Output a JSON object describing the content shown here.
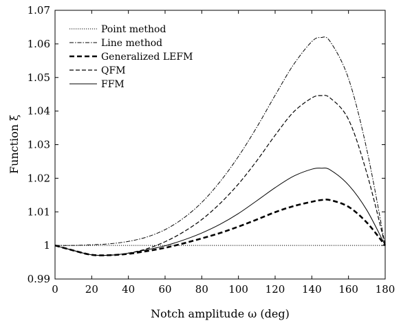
{
  "chart_data": {
    "type": "line",
    "title": "",
    "xlabel": "Notch amplitude ω (deg)",
    "ylabel": "Function ξ",
    "xlim": [
      0,
      180
    ],
    "ylim": [
      0.99,
      1.07
    ],
    "xticks": [
      0,
      20,
      40,
      60,
      80,
      100,
      120,
      140,
      160,
      180
    ],
    "yticks": [
      0.99,
      1,
      1.01,
      1.02,
      1.03,
      1.04,
      1.05,
      1.06,
      1.07
    ],
    "ytick_labels": [
      "0.99",
      "1",
      "1.01",
      "1.02",
      "1.03",
      "1.04",
      "1.05",
      "1.06",
      "1.07"
    ],
    "grid": false,
    "legend_position": "top-left",
    "x": [
      0,
      10,
      20,
      30,
      40,
      50,
      60,
      70,
      80,
      90,
      100,
      110,
      120,
      130,
      140,
      145,
      150,
      160,
      170,
      180
    ],
    "series": [
      {
        "name": "Point method",
        "style": "dotted",
        "values": [
          1,
          1,
          1,
          1,
          1,
          1,
          1,
          1,
          1,
          1,
          1,
          1,
          1,
          1,
          1,
          1,
          1,
          1,
          1,
          1
        ]
      },
      {
        "name": "Line method",
        "style": "dashdot",
        "values": [
          1.0,
          1.0,
          1.0002,
          1.0005,
          1.0012,
          1.0025,
          1.0047,
          1.0081,
          1.0128,
          1.019,
          1.0265,
          1.0352,
          1.0447,
          1.0538,
          1.0607,
          1.0619,
          1.0607,
          1.0497,
          1.0285,
          1.0
        ]
      },
      {
        "name": "Generalized LEFM",
        "style": "bold-dashed",
        "values": [
          1.0,
          0.9985,
          0.9972,
          0.9971,
          0.9975,
          0.9983,
          0.9993,
          1.0006,
          1.0021,
          1.0037,
          1.0056,
          1.0077,
          1.0099,
          1.0117,
          1.013,
          1.0135,
          1.0135,
          1.0115,
          1.0068,
          1.0
        ]
      },
      {
        "name": "QFM",
        "style": "dashed",
        "values": [
          1.0,
          0.9985,
          0.9972,
          0.9971,
          0.9977,
          0.999,
          1.0011,
          1.004,
          1.0077,
          1.0125,
          1.0183,
          1.0252,
          1.0328,
          1.0397,
          1.0439,
          1.0446,
          1.0439,
          1.0375,
          1.0215,
          1.0
        ]
      },
      {
        "name": "FFM",
        "style": "solid",
        "values": [
          1.0,
          0.9985,
          0.9972,
          0.9971,
          0.9977,
          0.9987,
          0.9999,
          1.0016,
          1.0037,
          1.0063,
          1.0095,
          1.0133,
          1.0172,
          1.0206,
          1.0227,
          1.023,
          1.0225,
          1.018,
          1.0105,
          1.0
        ]
      }
    ]
  }
}
